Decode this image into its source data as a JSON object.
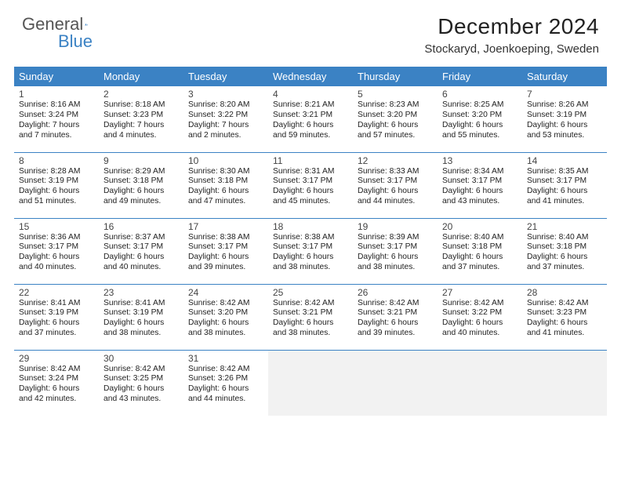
{
  "brand": {
    "part1": "General",
    "part2": "Blue"
  },
  "title": "December 2024",
  "location": "Stockaryd, Joenkoeping, Sweden",
  "colors": {
    "header_bg": "#3b82c4",
    "header_text": "#ffffff",
    "rule": "#3b82c4",
    "logo_blue": "#3b82c4",
    "empty_bg": "#f2f2f2"
  },
  "weekdays": [
    "Sunday",
    "Monday",
    "Tuesday",
    "Wednesday",
    "Thursday",
    "Friday",
    "Saturday"
  ],
  "grid": {
    "cols": 7,
    "rows": 5,
    "start_col": 0
  },
  "days": [
    {
      "n": 1,
      "sr": "8:16 AM",
      "ss": "3:24 PM",
      "dl": "7 hours and 7 minutes."
    },
    {
      "n": 2,
      "sr": "8:18 AM",
      "ss": "3:23 PM",
      "dl": "7 hours and 4 minutes."
    },
    {
      "n": 3,
      "sr": "8:20 AM",
      "ss": "3:22 PM",
      "dl": "7 hours and 2 minutes."
    },
    {
      "n": 4,
      "sr": "8:21 AM",
      "ss": "3:21 PM",
      "dl": "6 hours and 59 minutes."
    },
    {
      "n": 5,
      "sr": "8:23 AM",
      "ss": "3:20 PM",
      "dl": "6 hours and 57 minutes."
    },
    {
      "n": 6,
      "sr": "8:25 AM",
      "ss": "3:20 PM",
      "dl": "6 hours and 55 minutes."
    },
    {
      "n": 7,
      "sr": "8:26 AM",
      "ss": "3:19 PM",
      "dl": "6 hours and 53 minutes."
    },
    {
      "n": 8,
      "sr": "8:28 AM",
      "ss": "3:19 PM",
      "dl": "6 hours and 51 minutes."
    },
    {
      "n": 9,
      "sr": "8:29 AM",
      "ss": "3:18 PM",
      "dl": "6 hours and 49 minutes."
    },
    {
      "n": 10,
      "sr": "8:30 AM",
      "ss": "3:18 PM",
      "dl": "6 hours and 47 minutes."
    },
    {
      "n": 11,
      "sr": "8:31 AM",
      "ss": "3:17 PM",
      "dl": "6 hours and 45 minutes."
    },
    {
      "n": 12,
      "sr": "8:33 AM",
      "ss": "3:17 PM",
      "dl": "6 hours and 44 minutes."
    },
    {
      "n": 13,
      "sr": "8:34 AM",
      "ss": "3:17 PM",
      "dl": "6 hours and 43 minutes."
    },
    {
      "n": 14,
      "sr": "8:35 AM",
      "ss": "3:17 PM",
      "dl": "6 hours and 41 minutes."
    },
    {
      "n": 15,
      "sr": "8:36 AM",
      "ss": "3:17 PM",
      "dl": "6 hours and 40 minutes."
    },
    {
      "n": 16,
      "sr": "8:37 AM",
      "ss": "3:17 PM",
      "dl": "6 hours and 40 minutes."
    },
    {
      "n": 17,
      "sr": "8:38 AM",
      "ss": "3:17 PM",
      "dl": "6 hours and 39 minutes."
    },
    {
      "n": 18,
      "sr": "8:38 AM",
      "ss": "3:17 PM",
      "dl": "6 hours and 38 minutes."
    },
    {
      "n": 19,
      "sr": "8:39 AM",
      "ss": "3:17 PM",
      "dl": "6 hours and 38 minutes."
    },
    {
      "n": 20,
      "sr": "8:40 AM",
      "ss": "3:18 PM",
      "dl": "6 hours and 37 minutes."
    },
    {
      "n": 21,
      "sr": "8:40 AM",
      "ss": "3:18 PM",
      "dl": "6 hours and 37 minutes."
    },
    {
      "n": 22,
      "sr": "8:41 AM",
      "ss": "3:19 PM",
      "dl": "6 hours and 37 minutes."
    },
    {
      "n": 23,
      "sr": "8:41 AM",
      "ss": "3:19 PM",
      "dl": "6 hours and 38 minutes."
    },
    {
      "n": 24,
      "sr": "8:42 AM",
      "ss": "3:20 PM",
      "dl": "6 hours and 38 minutes."
    },
    {
      "n": 25,
      "sr": "8:42 AM",
      "ss": "3:21 PM",
      "dl": "6 hours and 38 minutes."
    },
    {
      "n": 26,
      "sr": "8:42 AM",
      "ss": "3:21 PM",
      "dl": "6 hours and 39 minutes."
    },
    {
      "n": 27,
      "sr": "8:42 AM",
      "ss": "3:22 PM",
      "dl": "6 hours and 40 minutes."
    },
    {
      "n": 28,
      "sr": "8:42 AM",
      "ss": "3:23 PM",
      "dl": "6 hours and 41 minutes."
    },
    {
      "n": 29,
      "sr": "8:42 AM",
      "ss": "3:24 PM",
      "dl": "6 hours and 42 minutes."
    },
    {
      "n": 30,
      "sr": "8:42 AM",
      "ss": "3:25 PM",
      "dl": "6 hours and 43 minutes."
    },
    {
      "n": 31,
      "sr": "8:42 AM",
      "ss": "3:26 PM",
      "dl": "6 hours and 44 minutes."
    }
  ],
  "labels": {
    "sunrise": "Sunrise: ",
    "sunset": "Sunset: ",
    "daylight": "Daylight: "
  }
}
